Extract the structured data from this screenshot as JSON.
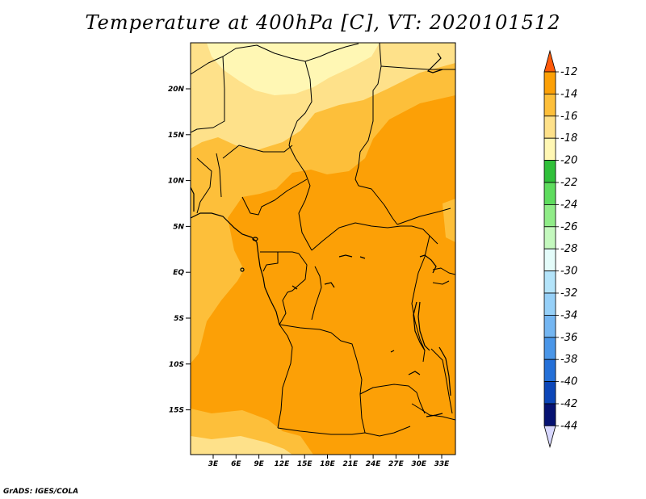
{
  "title": "Temperature at 400hPa [C], VT: 2020101512",
  "credit": "GrADS: IGES/COLA",
  "map": {
    "lat_labels": [
      "20N",
      "15N",
      "10N",
      "5N",
      "EQ",
      "5S",
      "10S",
      "15S"
    ],
    "lon_labels": [
      "3E",
      "6E",
      "9E",
      "12E",
      "15E",
      "18E",
      "21E",
      "24E",
      "27E",
      "30E",
      "33E"
    ],
    "field_colors": {
      "range_minus_22_to_minus_20": "#fff7b4",
      "range_minus_20_to_minus_18": "#fee18a",
      "range_minus_18_to_minus_16": "#fdbf3a",
      "range_minus_16_to_minus_14": "#fca006",
      "border": "#000000"
    }
  },
  "colorbar": {
    "labels": [
      "-12",
      "-14",
      "-16",
      "-18",
      "-20",
      "-22",
      "-24",
      "-26",
      "-28",
      "-30",
      "-32",
      "-34",
      "-36",
      "-38",
      "-40",
      "-42",
      "-44"
    ],
    "top_arrow_color": "#ff5a0a",
    "bottom_arrow_color": "#d8d8ff",
    "colors": [
      "#f26b00",
      "#fca006",
      "#fdbf3a",
      "#fee18a",
      "#fff7b4",
      "#30c03a",
      "#5edc5e",
      "#90ec88",
      "#c4f8be",
      "#e4fcfa",
      "#b4e4fa",
      "#96d0f8",
      "#74b6f2",
      "#4a96e8",
      "#2470d8",
      "#0c46b8",
      "#061272"
    ]
  }
}
